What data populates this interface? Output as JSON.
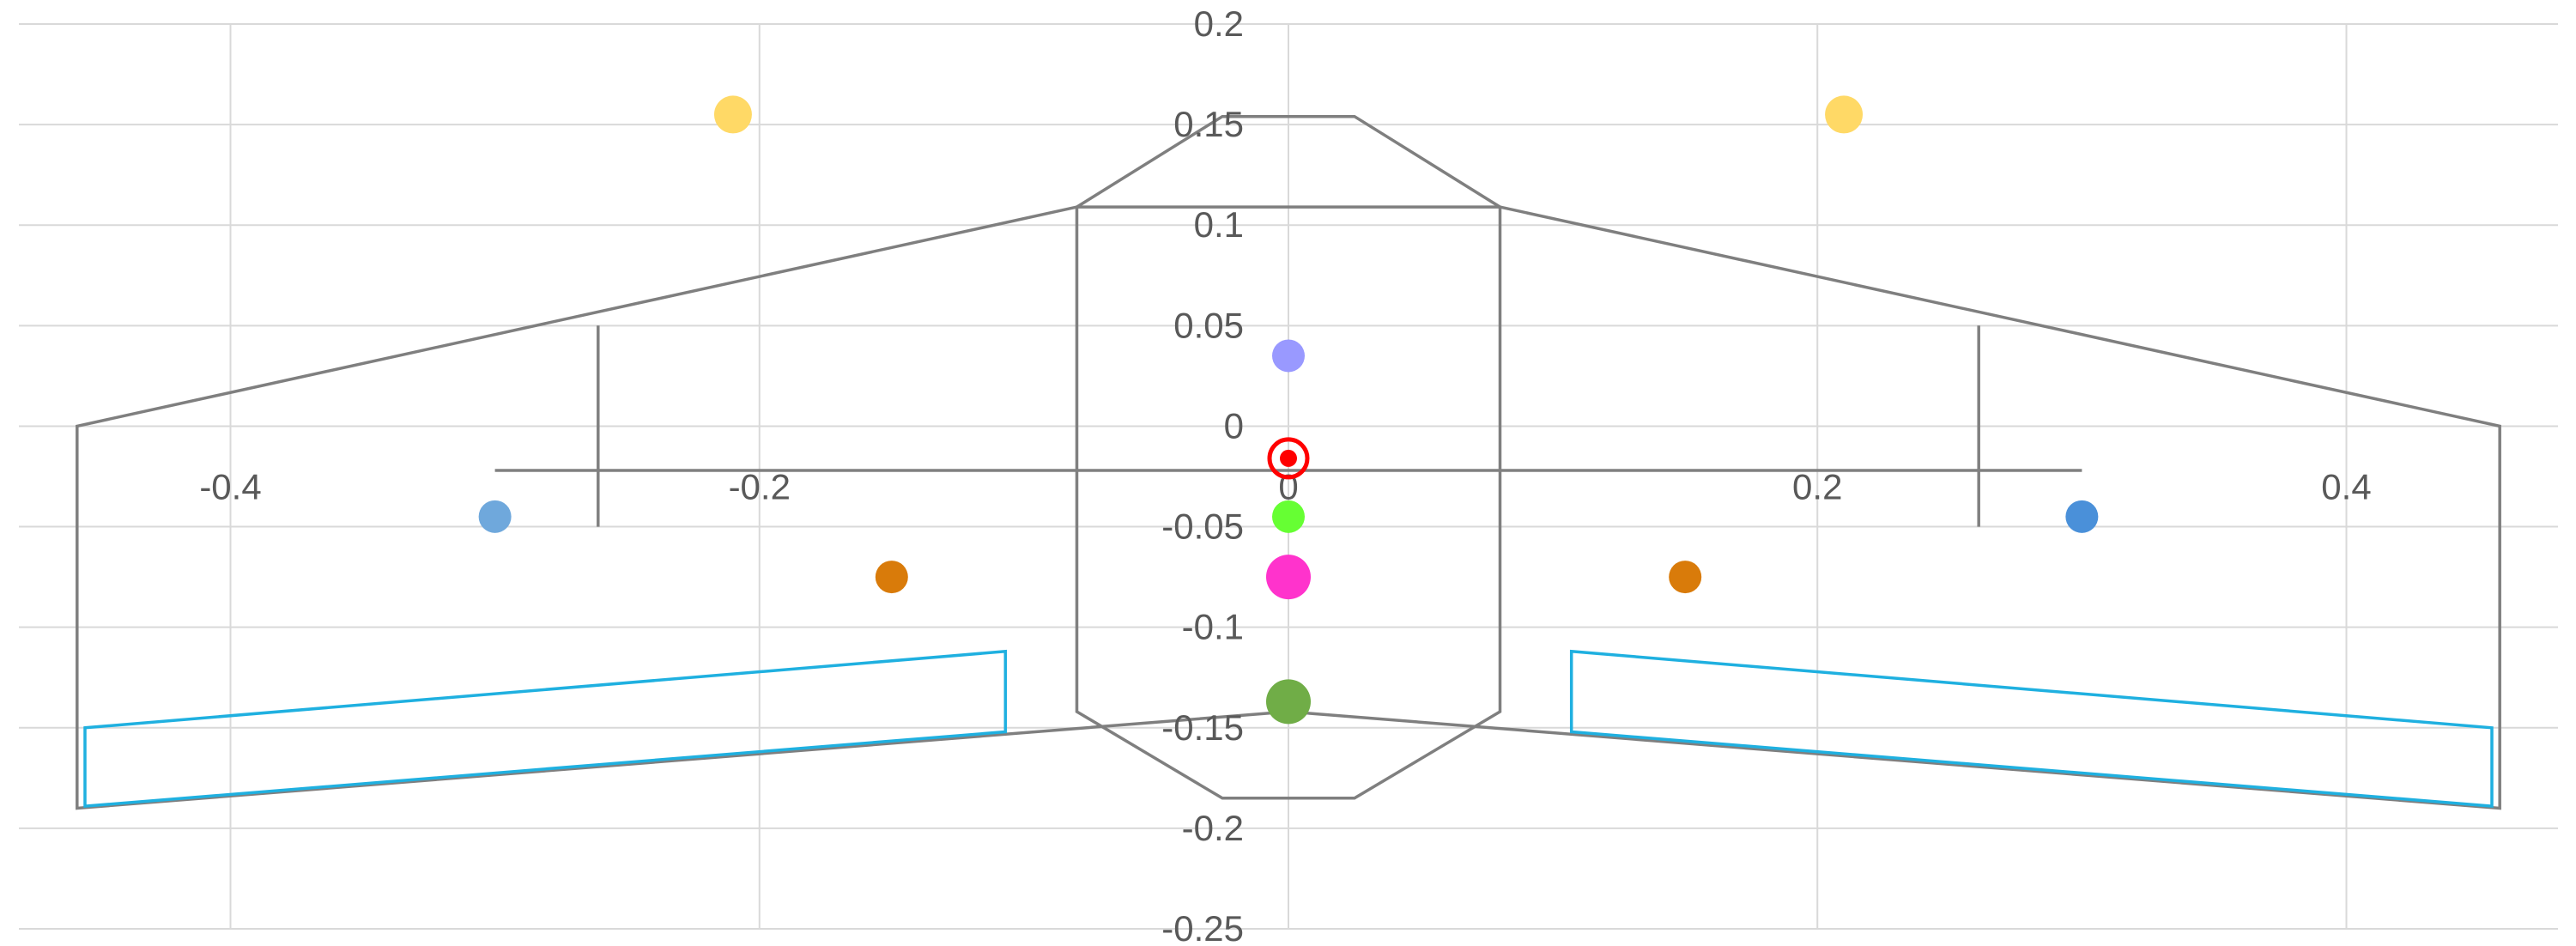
{
  "chart_data": {
    "type": "scatter",
    "title": "",
    "xlabel": "",
    "ylabel": "",
    "xlim": [
      -0.48,
      0.48
    ],
    "ylim": [
      -0.25,
      0.2
    ],
    "grid": true,
    "x_ticks": [
      -0.4,
      -0.2,
      0,
      0.2,
      0.4
    ],
    "y_ticks": [
      0.2,
      0.15,
      0.1,
      0.05,
      0,
      -0.05,
      -0.1,
      -0.15,
      -0.2,
      -0.25
    ],
    "x_tick_labels": [
      "-0.4",
      "-0.2",
      "0",
      "0.2",
      "0.4"
    ],
    "y_tick_labels": [
      "0.2",
      "0.15",
      "0.1",
      "0.05",
      "0",
      "-0.05",
      "-0.1",
      "-0.15",
      "-0.2",
      "-0.25"
    ],
    "outlines": [
      {
        "name": "wing",
        "color": "#7f7f7f",
        "closed": true,
        "points": [
          [
            -0.458,
            0
          ],
          [
            -0.08,
            0.109
          ],
          [
            0.08,
            0.109
          ],
          [
            0.458,
            0
          ],
          [
            0.458,
            -0.19
          ],
          [
            0,
            -0.142
          ],
          [
            -0.458,
            -0.19
          ]
        ]
      },
      {
        "name": "fuselage",
        "color": "#7f7f7f",
        "closed": true,
        "points": [
          [
            -0.08,
            0.109
          ],
          [
            -0.025,
            0.154
          ],
          [
            0.025,
            0.154
          ],
          [
            0.08,
            0.109
          ],
          [
            0.08,
            -0.142
          ],
          [
            0.025,
            -0.185
          ],
          [
            -0.025,
            -0.185
          ],
          [
            -0.08,
            -0.142
          ]
        ]
      },
      {
        "name": "left-aileron",
        "color": "#1fb0e0",
        "closed": true,
        "points": [
          [
            -0.455,
            -0.15
          ],
          [
            -0.107,
            -0.112
          ],
          [
            -0.107,
            -0.152
          ],
          [
            -0.455,
            -0.189
          ]
        ]
      },
      {
        "name": "right-aileron",
        "color": "#1fb0e0",
        "closed": true,
        "points": [
          [
            0.107,
            -0.112
          ],
          [
            0.455,
            -0.15
          ],
          [
            0.455,
            -0.189
          ],
          [
            0.107,
            -0.152
          ]
        ]
      },
      {
        "name": "span-line",
        "color": "#808080",
        "closed": false,
        "points": [
          [
            -0.3,
            -0.022
          ],
          [
            0.3,
            -0.022
          ]
        ]
      },
      {
        "name": "left-station-line",
        "color": "#808080",
        "closed": false,
        "points": [
          [
            -0.261,
            0.05
          ],
          [
            -0.261,
            -0.05
          ]
        ]
      },
      {
        "name": "right-station-line",
        "color": "#808080",
        "closed": false,
        "points": [
          [
            0.261,
            0.05
          ],
          [
            0.261,
            -0.05
          ]
        ]
      }
    ],
    "points": [
      {
        "x": -0.21,
        "y": 0.155,
        "color": "#ffd966",
        "r": 22
      },
      {
        "x": 0.21,
        "y": 0.155,
        "color": "#ffd966",
        "r": 22
      },
      {
        "x": 0,
        "y": 0.035,
        "color": "#9999ff",
        "r": 19
      },
      {
        "x": -0.3,
        "y": -0.045,
        "color": "#6fa8dc",
        "r": 19
      },
      {
        "x": 0.3,
        "y": -0.045,
        "color": "#4a90d9",
        "r": 19
      },
      {
        "x": -0.15,
        "y": -0.075,
        "color": "#d97b0a",
        "r": 19
      },
      {
        "x": 0.15,
        "y": -0.075,
        "color": "#d97b0a",
        "r": 19
      },
      {
        "x": 0,
        "y": -0.045,
        "color": "#66ff33",
        "r": 19
      },
      {
        "x": 0,
        "y": -0.075,
        "color": "#ff33cc",
        "r": 26
      },
      {
        "x": 0,
        "y": -0.137,
        "color": "#70ad47",
        "r": 26
      },
      {
        "x": 0,
        "y": -0.016,
        "color": "#ff0000",
        "r": 10,
        "ring": true
      }
    ]
  }
}
